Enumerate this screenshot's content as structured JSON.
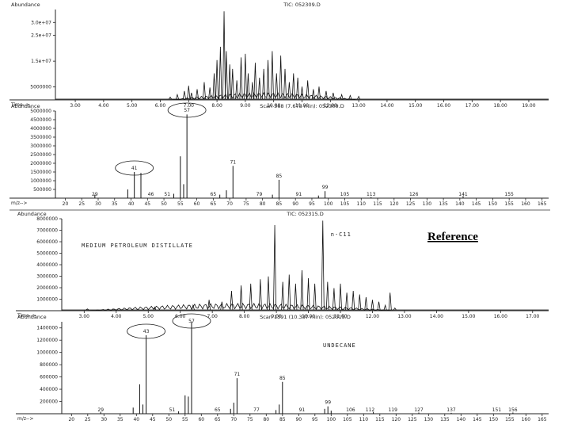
{
  "reference_label": "Reference",
  "chart_data": [
    {
      "id": "tic_top",
      "type": "line",
      "header_left": "Abundance",
      "header_center": "TIC: 052309.D",
      "x_axis_label": "Time-->",
      "x_ticks": [
        3,
        4,
        5,
        6,
        7,
        8,
        9,
        10,
        11,
        12,
        13,
        14,
        15,
        16,
        17,
        18,
        19
      ],
      "x_tick_labels": [
        "3.00",
        "4.00",
        "5.00",
        "6.00",
        "7.00",
        "8.00",
        "9.00",
        "10.00",
        "11.00",
        "12.00",
        "13.00",
        "14.00",
        "15.00",
        "16.00",
        "17.00",
        "18.00",
        "19.00"
      ],
      "xlim": [
        2.3,
        19.7
      ],
      "ylim": [
        0,
        35000000
      ],
      "y_ticks": [
        5000000,
        15000000,
        25000000,
        30000000
      ],
      "y_tick_labels": [
        "5000000",
        "1.5e+07",
        "2.5e+07",
        "3.0e+07"
      ],
      "peaks": [
        [
          6.35,
          0.03
        ],
        [
          6.6,
          0.06
        ],
        [
          6.85,
          0.1
        ],
        [
          7.0,
          0.16
        ],
        [
          7.1,
          0.08
        ],
        [
          7.3,
          0.12
        ],
        [
          7.55,
          0.2
        ],
        [
          7.75,
          0.14
        ],
        [
          7.9,
          0.3
        ],
        [
          8.0,
          0.45
        ],
        [
          8.12,
          0.6
        ],
        [
          8.25,
          1.0
        ],
        [
          8.33,
          0.55
        ],
        [
          8.45,
          0.4
        ],
        [
          8.55,
          0.35
        ],
        [
          8.7,
          0.22
        ],
        [
          8.85,
          0.48
        ],
        [
          9.0,
          0.52
        ],
        [
          9.1,
          0.3
        ],
        [
          9.25,
          0.2
        ],
        [
          9.35,
          0.42
        ],
        [
          9.5,
          0.25
        ],
        [
          9.65,
          0.35
        ],
        [
          9.8,
          0.45
        ],
        [
          9.95,
          0.55
        ],
        [
          10.1,
          0.3
        ],
        [
          10.25,
          0.5
        ],
        [
          10.4,
          0.35
        ],
        [
          10.55,
          0.2
        ],
        [
          10.7,
          0.3
        ],
        [
          10.85,
          0.25
        ],
        [
          11.0,
          0.15
        ],
        [
          11.2,
          0.22
        ],
        [
          11.4,
          0.12
        ],
        [
          11.6,
          0.15
        ],
        [
          11.85,
          0.1
        ],
        [
          12.1,
          0.08
        ],
        [
          12.4,
          0.06
        ],
        [
          12.7,
          0.05
        ],
        [
          13.0,
          0.04
        ]
      ],
      "peak_unit": "fraction of ylim max"
    },
    {
      "id": "ms_top",
      "type": "bar",
      "header_left": "Abundance",
      "header_center": "Scan 568 (7.673 min): 052309.D",
      "x_axis_label": "m/z-->",
      "x_ticks": [
        20,
        25,
        30,
        35,
        40,
        45,
        50,
        55,
        60,
        65,
        70,
        75,
        80,
        85,
        90,
        95,
        100,
        105,
        110,
        115,
        120,
        125,
        130,
        135,
        140,
        145,
        150,
        155,
        160,
        165
      ],
      "xlim": [
        17,
        167
      ],
      "ylim": [
        0,
        5000000
      ],
      "y_ticks": [
        500000,
        1000000,
        1500000,
        2000000,
        2500000,
        3000000,
        3500000,
        4000000,
        4500000,
        5000000
      ],
      "y_tick_labels": [
        "500000",
        "1000000",
        "1500000",
        "2000000",
        "2500000",
        "3000000",
        "3500000",
        "4000000",
        "4500000",
        "5000000"
      ],
      "bars": [
        [
          29,
          200000
        ],
        [
          39,
          500000
        ],
        [
          41,
          1500000
        ],
        [
          43,
          1450000
        ],
        [
          53,
          250000
        ],
        [
          55,
          2400000
        ],
        [
          56,
          800000
        ],
        [
          57,
          4800000
        ],
        [
          67,
          200000
        ],
        [
          69,
          450000
        ],
        [
          71,
          1850000
        ],
        [
          83,
          200000
        ],
        [
          85,
          1050000
        ],
        [
          97,
          150000
        ],
        [
          99,
          400000
        ],
        [
          113,
          60000
        ],
        [
          141,
          120000
        ]
      ],
      "peak_labels": [
        {
          "mz": 57,
          "text": "57",
          "circled": true
        },
        {
          "mz": 41,
          "text": "41",
          "circled": true
        },
        {
          "mz": 71,
          "text": "71"
        },
        {
          "mz": 85,
          "text": "85"
        },
        {
          "mz": 99,
          "text": "99"
        },
        {
          "mz": 29,
          "text": "29",
          "low": true
        },
        {
          "mz": 46,
          "text": "46",
          "low": true
        },
        {
          "mz": 51,
          "text": "51",
          "low": true
        },
        {
          "mz": 65,
          "text": "65",
          "low": true
        },
        {
          "mz": 79,
          "text": "79",
          "low": true
        },
        {
          "mz": 91,
          "text": "91",
          "low": true
        },
        {
          "mz": 105,
          "text": "105",
          "low": true
        },
        {
          "mz": 113,
          "text": "113",
          "low": true
        },
        {
          "mz": 126,
          "text": "126",
          "low": true
        },
        {
          "mz": 141,
          "text": "141",
          "low": true
        },
        {
          "mz": 155,
          "text": "155",
          "low": true
        }
      ]
    },
    {
      "id": "tic_bottom",
      "type": "line",
      "header_left": "Abundance",
      "header_center": "TIC: 052315.D",
      "annotation": "MEDIUM PETROLEUM DISTILLATE",
      "peak_annotation": "n-C11",
      "x_axis_label": "Time-->",
      "x_ticks": [
        3,
        4,
        5,
        6,
        7,
        8,
        9,
        10,
        11,
        12,
        13,
        14,
        15,
        16,
        17
      ],
      "x_tick_labels": [
        "3.00",
        "4.00",
        "5.00",
        "6.00",
        "7.00",
        "8.00",
        "9.00",
        "10.00",
        "11.00",
        "12.00",
        "13.00",
        "14.00",
        "15.00",
        "16.00",
        "17.00"
      ],
      "xlim": [
        2.3,
        17.5
      ],
      "ylim": [
        0,
        8000000
      ],
      "y_ticks": [
        1000000,
        2000000,
        3000000,
        4000000,
        5000000,
        6000000,
        7000000,
        8000000
      ],
      "y_tick_labels": [
        "1000000",
        "2000000",
        "3000000",
        "4000000",
        "5000000",
        "6000000",
        "7000000",
        "8000000"
      ],
      "peaks": [
        [
          3.1,
          0.02
        ],
        [
          5.2,
          0.04
        ],
        [
          6.4,
          0.06
        ],
        [
          6.9,
          0.12
        ],
        [
          7.3,
          0.1
        ],
        [
          7.6,
          0.22
        ],
        [
          7.9,
          0.28
        ],
        [
          8.2,
          0.3
        ],
        [
          8.5,
          0.35
        ],
        [
          8.75,
          0.38
        ],
        [
          8.95,
          0.95
        ],
        [
          9.2,
          0.32
        ],
        [
          9.4,
          0.4
        ],
        [
          9.6,
          0.3
        ],
        [
          9.8,
          0.45
        ],
        [
          10.0,
          0.36
        ],
        [
          10.2,
          0.3
        ],
        [
          10.45,
          1.0
        ],
        [
          10.6,
          0.32
        ],
        [
          10.8,
          0.25
        ],
        [
          11.0,
          0.3
        ],
        [
          11.2,
          0.2
        ],
        [
          11.4,
          0.22
        ],
        [
          11.6,
          0.18
        ],
        [
          11.8,
          0.15
        ],
        [
          12.0,
          0.12
        ],
        [
          12.2,
          0.1
        ],
        [
          12.4,
          0.06
        ],
        [
          12.55,
          0.2
        ],
        [
          12.7,
          0.03
        ]
      ],
      "peak_unit": "fraction of ylim max"
    },
    {
      "id": "ms_bottom",
      "type": "bar",
      "header_left": "Abundance",
      "header_center": "Scan 1391 (10.337 min): 052315.D",
      "annotation": "UNDECANE",
      "x_axis_label": "m/z-->",
      "x_ticks": [
        20,
        25,
        30,
        35,
        40,
        45,
        50,
        55,
        60,
        65,
        70,
        75,
        80,
        85,
        90,
        95,
        100,
        105,
        110,
        115,
        120,
        125,
        130,
        135,
        140,
        145,
        150,
        155,
        160,
        165
      ],
      "xlim": [
        17,
        167
      ],
      "ylim": [
        0,
        1500000
      ],
      "y_ticks": [
        200000,
        400000,
        600000,
        800000,
        1000000,
        1200000,
        1400000
      ],
      "y_tick_labels": [
        "200000",
        "400000",
        "600000",
        "800000",
        "1000000",
        "1200000",
        "1400000"
      ],
      "bars": [
        [
          29,
          30000
        ],
        [
          39,
          100000
        ],
        [
          41,
          480000
        ],
        [
          42,
          150000
        ],
        [
          43,
          1280000
        ],
        [
          53,
          40000
        ],
        [
          55,
          300000
        ],
        [
          56,
          280000
        ],
        [
          57,
          1500000
        ],
        [
          69,
          80000
        ],
        [
          70,
          180000
        ],
        [
          71,
          580000
        ],
        [
          83,
          60000
        ],
        [
          84,
          150000
        ],
        [
          85,
          520000
        ],
        [
          98,
          80000
        ],
        [
          99,
          120000
        ],
        [
          100,
          50000
        ],
        [
          113,
          30000
        ],
        [
          127,
          20000
        ],
        [
          137,
          15000
        ],
        [
          156,
          20000
        ]
      ],
      "peak_labels": [
        {
          "mz": 57,
          "text": "57",
          "circled": true
        },
        {
          "mz": 43,
          "text": "43",
          "circled": true
        },
        {
          "mz": 71,
          "text": "71"
        },
        {
          "mz": 85,
          "text": "85"
        },
        {
          "mz": 99,
          "text": "99"
        },
        {
          "mz": 29,
          "text": "29",
          "low": true
        },
        {
          "mz": 51,
          "text": "51",
          "low": true
        },
        {
          "mz": 65,
          "text": "65",
          "low": true
        },
        {
          "mz": 77,
          "text": "77",
          "low": true
        },
        {
          "mz": 91,
          "text": "91",
          "low": true
        },
        {
          "mz": 106,
          "text": "106",
          "low": true
        },
        {
          "mz": 112,
          "text": "112",
          "low": true
        },
        {
          "mz": 119,
          "text": "119",
          "low": true
        },
        {
          "mz": 127,
          "text": "127",
          "low": true
        },
        {
          "mz": 137,
          "text": "137",
          "low": true
        },
        {
          "mz": 151,
          "text": "151",
          "low": true
        },
        {
          "mz": 156,
          "text": "156",
          "low": true
        }
      ]
    }
  ]
}
